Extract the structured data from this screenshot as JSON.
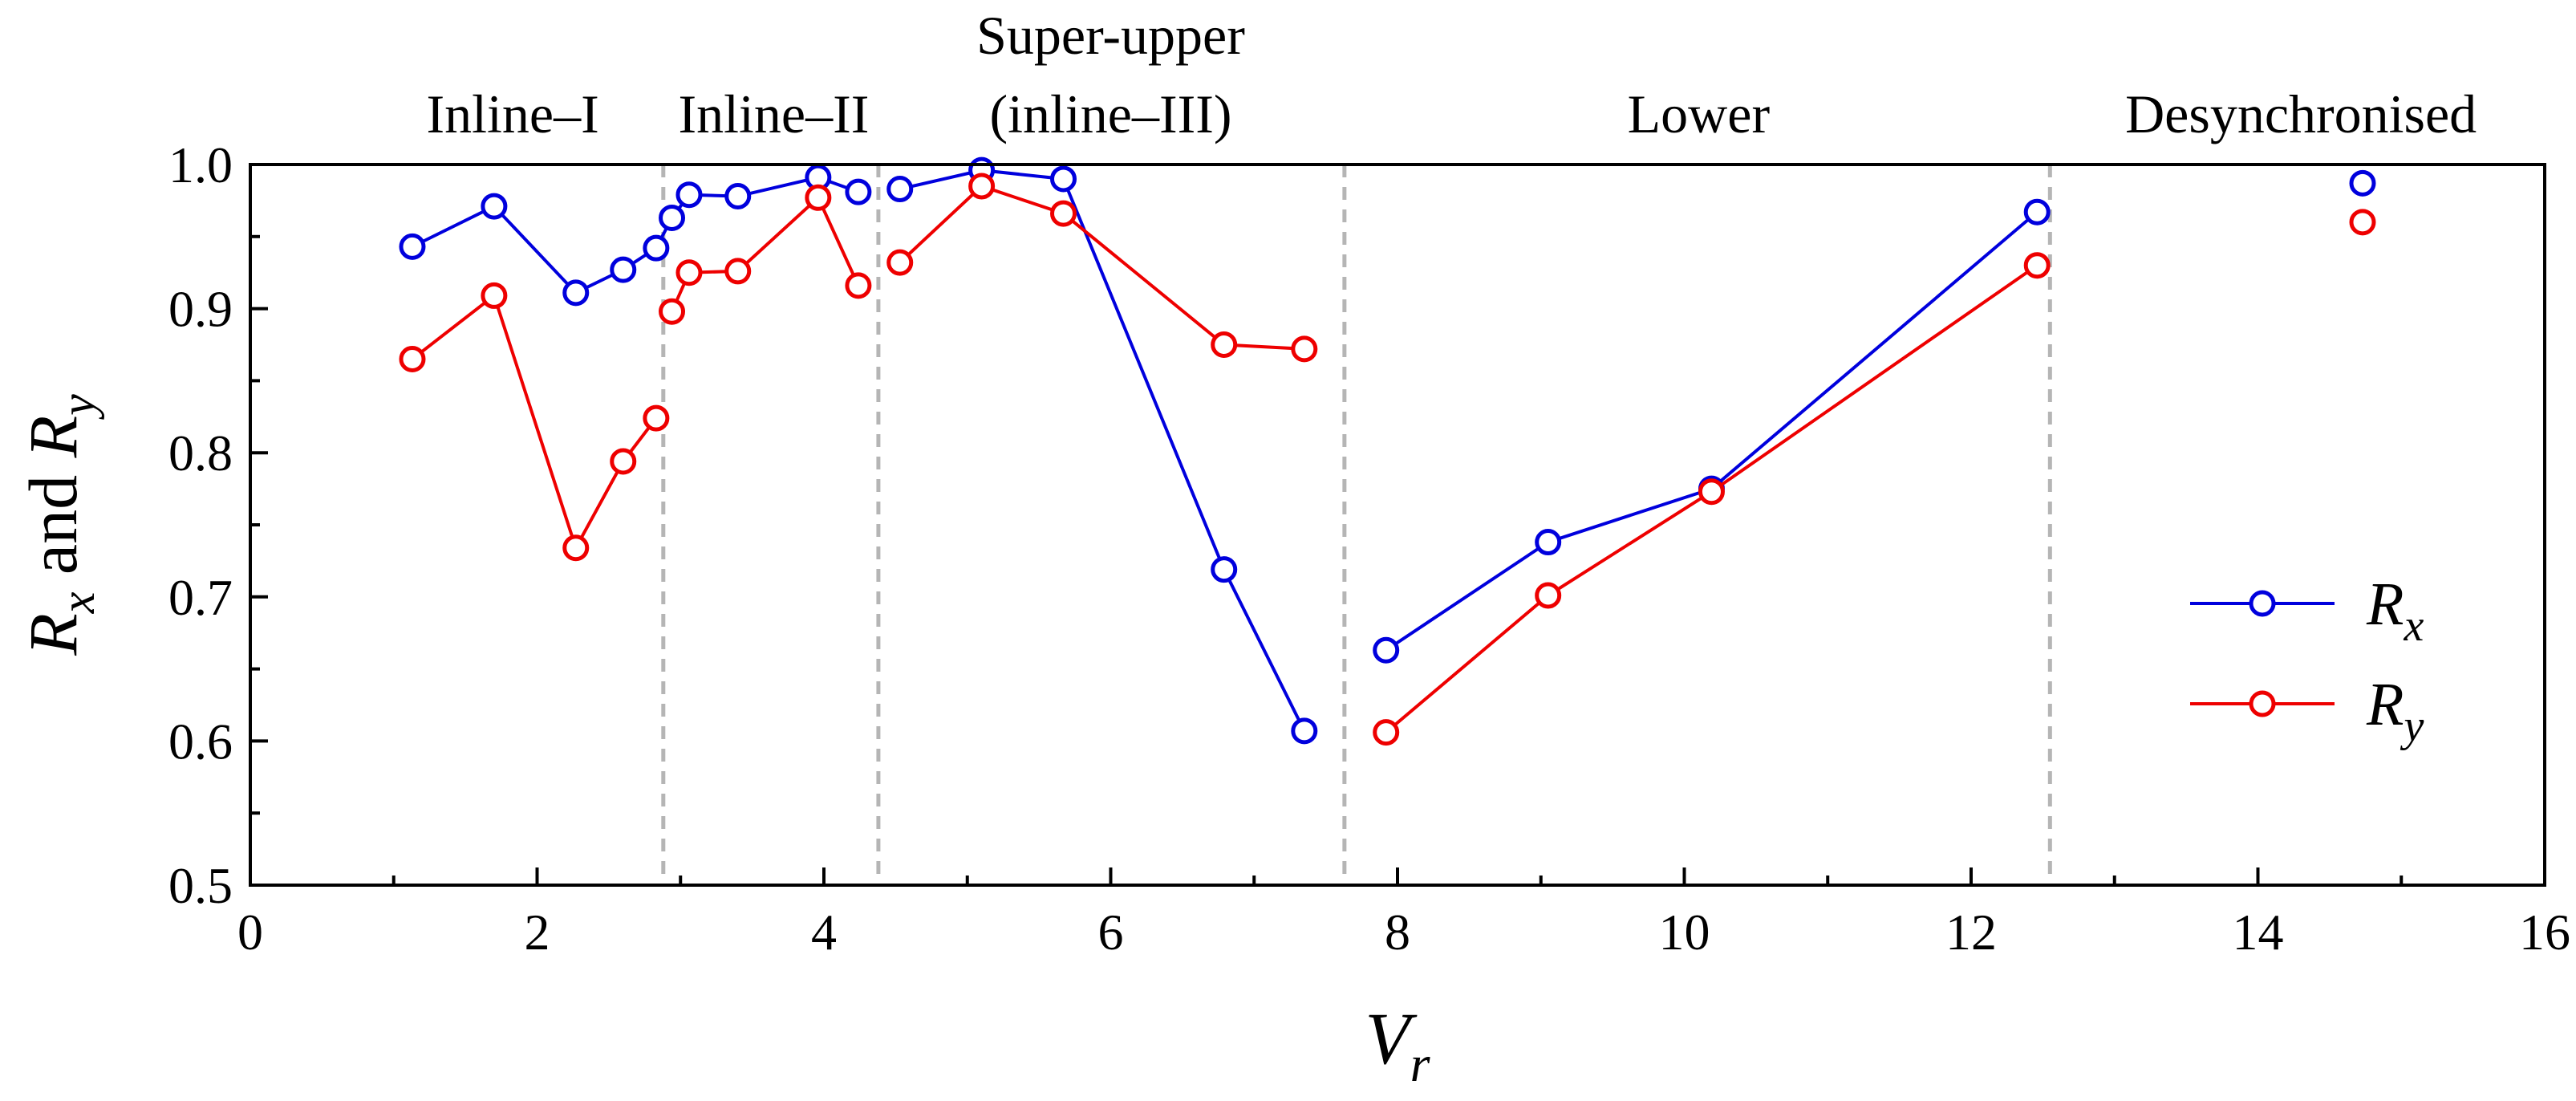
{
  "chart_data": {
    "type": "line",
    "xlabel": "V",
    "xlabel_sub": "r",
    "ylabel_parts": [
      "R",
      "x",
      " and ",
      "R",
      "y"
    ],
    "xlim": [
      0,
      16
    ],
    "ylim": [
      0.5,
      1.0
    ],
    "xticks": [
      0,
      2,
      4,
      6,
      8,
      10,
      12,
      14,
      16
    ],
    "yticks": [
      0.5,
      0.6,
      0.7,
      0.8,
      0.9,
      1.0
    ],
    "xtick_labels": [
      "0",
      "2",
      "4",
      "6",
      "8",
      "10",
      "12",
      "14",
      "16"
    ],
    "ytick_labels": [
      "0.5",
      "0.6",
      "0.7",
      "0.8",
      "0.9",
      "1.0"
    ],
    "grid": false,
    "legend_position": "right",
    "dividers": [
      2.88,
      4.38,
      7.63,
      12.55
    ],
    "regions": [
      {
        "label": "Inline–I",
        "x": 1.83
      },
      {
        "label": "Inline–II",
        "x": 3.65
      },
      {
        "label": "Super-upper",
        "label2": "(inline–III)",
        "x": 6.0
      },
      {
        "label": "Lower",
        "x": 10.1
      },
      {
        "label": "Desynchronised",
        "x": 14.3
      }
    ],
    "series": [
      {
        "name": "R",
        "name_sub": "x",
        "color": "#0000dd",
        "segments": [
          [
            [
              1.13,
              0.943
            ],
            [
              1.7,
              0.971
            ],
            [
              2.27,
              0.911
            ],
            [
              2.6,
              0.927
            ],
            [
              2.83,
              0.942
            ],
            [
              2.94,
              0.963
            ],
            [
              3.06,
              0.979
            ],
            [
              3.4,
              0.978
            ],
            [
              3.96,
              0.991
            ],
            [
              4.24,
              0.981
            ]
          ],
          [
            [
              4.53,
              0.983
            ],
            [
              5.1,
              0.996
            ],
            [
              5.67,
              0.99
            ],
            [
              6.79,
              0.719
            ],
            [
              7.35,
              0.607
            ]
          ],
          [
            [
              7.92,
              0.663
            ],
            [
              9.05,
              0.738
            ],
            [
              10.19,
              0.775
            ],
            [
              12.46,
              0.967
            ]
          ],
          [
            [
              14.73,
              0.987
            ]
          ]
        ]
      },
      {
        "name": "R",
        "name_sub": "y",
        "color": "#ee0000",
        "segments": [
          [
            [
              1.13,
              0.865
            ],
            [
              1.7,
              0.909
            ],
            [
              2.27,
              0.734
            ],
            [
              2.6,
              0.794
            ],
            [
              2.83,
              0.824
            ]
          ],
          [
            [
              2.94,
              0.898
            ],
            [
              3.06,
              0.925
            ],
            [
              3.4,
              0.926
            ],
            [
              3.96,
              0.977
            ],
            [
              4.24,
              0.916
            ]
          ],
          [
            [
              4.53,
              0.932
            ],
            [
              5.1,
              0.985
            ],
            [
              5.67,
              0.966
            ],
            [
              6.79,
              0.875
            ],
            [
              7.35,
              0.872
            ]
          ],
          [
            [
              7.92,
              0.606
            ],
            [
              9.05,
              0.701
            ],
            [
              10.19,
              0.773
            ],
            [
              12.46,
              0.93
            ]
          ],
          [
            [
              14.73,
              0.96
            ]
          ]
        ]
      }
    ]
  }
}
